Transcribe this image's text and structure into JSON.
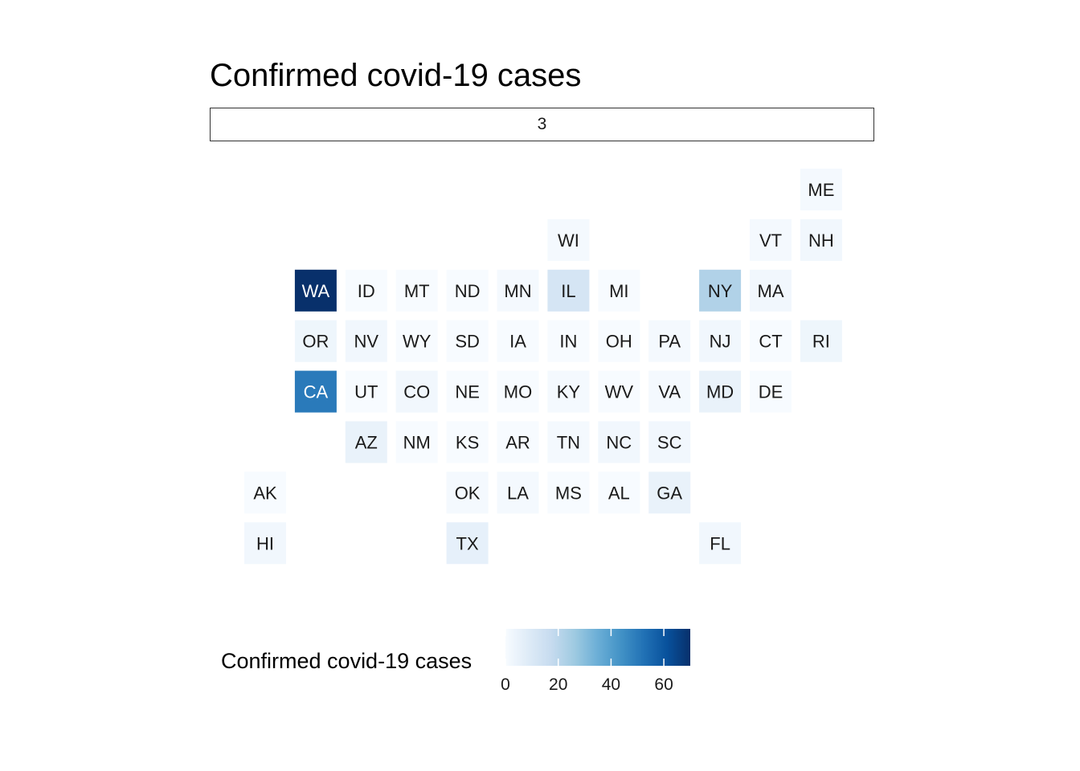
{
  "chart_data": {
    "type": "heatmap",
    "title": "Confirmed covid-19 cases",
    "facet_label": "3",
    "legend": {
      "title": "Confirmed covid-19 cases",
      "position": "bottom",
      "range": [
        0,
        70
      ],
      "ticks": [
        0,
        20,
        40,
        60
      ],
      "tick_labels": [
        "0",
        "20",
        "40",
        "60"
      ],
      "colors": [
        "#f7fbff",
        "#deebf7",
        "#c6dbef",
        "#9ecae1",
        "#6baed6",
        "#4292c6",
        "#2171b5",
        "#08519c",
        "#08306b"
      ]
    },
    "grid": false,
    "tiles": [
      {
        "state": "ME",
        "col": 12,
        "row": 1,
        "value": 1
      },
      {
        "state": "WI",
        "col": 7,
        "row": 2,
        "value": 1
      },
      {
        "state": "VT",
        "col": 11,
        "row": 2,
        "value": 1
      },
      {
        "state": "NH",
        "col": 12,
        "row": 2,
        "value": 2
      },
      {
        "state": "WA",
        "col": 2,
        "row": 3,
        "value": 70
      },
      {
        "state": "ID",
        "col": 3,
        "row": 3,
        "value": 0
      },
      {
        "state": "MT",
        "col": 4,
        "row": 3,
        "value": 0
      },
      {
        "state": "ND",
        "col": 5,
        "row": 3,
        "value": 0
      },
      {
        "state": "MN",
        "col": 6,
        "row": 3,
        "value": 1
      },
      {
        "state": "IL",
        "col": 7,
        "row": 3,
        "value": 12
      },
      {
        "state": "MI",
        "col": 8,
        "row": 3,
        "value": 0
      },
      {
        "state": "NY",
        "col": 10,
        "row": 3,
        "value": 22
      },
      {
        "state": "MA",
        "col": 11,
        "row": 3,
        "value": 2
      },
      {
        "state": "OR",
        "col": 2,
        "row": 4,
        "value": 3
      },
      {
        "state": "NV",
        "col": 3,
        "row": 4,
        "value": 2
      },
      {
        "state": "WY",
        "col": 4,
        "row": 4,
        "value": 0
      },
      {
        "state": "SD",
        "col": 5,
        "row": 4,
        "value": 0
      },
      {
        "state": "IA",
        "col": 6,
        "row": 4,
        "value": 0
      },
      {
        "state": "IN",
        "col": 7,
        "row": 4,
        "value": 0
      },
      {
        "state": "OH",
        "col": 8,
        "row": 4,
        "value": 0
      },
      {
        "state": "PA",
        "col": 9,
        "row": 4,
        "value": 1
      },
      {
        "state": "NJ",
        "col": 10,
        "row": 4,
        "value": 2
      },
      {
        "state": "CT",
        "col": 11,
        "row": 4,
        "value": 0
      },
      {
        "state": "RI",
        "col": 12,
        "row": 4,
        "value": 3
      },
      {
        "state": "CA",
        "col": 2,
        "row": 5,
        "value": 50
      },
      {
        "state": "UT",
        "col": 3,
        "row": 5,
        "value": 0
      },
      {
        "state": "CO",
        "col": 4,
        "row": 5,
        "value": 2
      },
      {
        "state": "NE",
        "col": 5,
        "row": 5,
        "value": 0
      },
      {
        "state": "MO",
        "col": 6,
        "row": 5,
        "value": 0
      },
      {
        "state": "KY",
        "col": 7,
        "row": 5,
        "value": 1
      },
      {
        "state": "WV",
        "col": 8,
        "row": 5,
        "value": 0
      },
      {
        "state": "VA",
        "col": 9,
        "row": 5,
        "value": 1
      },
      {
        "state": "MD",
        "col": 10,
        "row": 5,
        "value": 5
      },
      {
        "state": "DE",
        "col": 11,
        "row": 5,
        "value": 0
      },
      {
        "state": "AZ",
        "col": 3,
        "row": 6,
        "value": 5
      },
      {
        "state": "NM",
        "col": 4,
        "row": 6,
        "value": 0
      },
      {
        "state": "KS",
        "col": 5,
        "row": 6,
        "value": 0
      },
      {
        "state": "AR",
        "col": 6,
        "row": 6,
        "value": 0
      },
      {
        "state": "TN",
        "col": 7,
        "row": 6,
        "value": 1
      },
      {
        "state": "NC",
        "col": 8,
        "row": 6,
        "value": 2
      },
      {
        "state": "SC",
        "col": 9,
        "row": 6,
        "value": 2
      },
      {
        "state": "AK",
        "col": 1,
        "row": 7,
        "value": 0
      },
      {
        "state": "OK",
        "col": 5,
        "row": 7,
        "value": 1
      },
      {
        "state": "LA",
        "col": 6,
        "row": 7,
        "value": 1
      },
      {
        "state": "MS",
        "col": 7,
        "row": 7,
        "value": 0
      },
      {
        "state": "AL",
        "col": 8,
        "row": 7,
        "value": 0
      },
      {
        "state": "GA",
        "col": 9,
        "row": 7,
        "value": 5
      },
      {
        "state": "HI",
        "col": 1,
        "row": 8,
        "value": 2
      },
      {
        "state": "TX",
        "col": 5,
        "row": 8,
        "value": 6
      },
      {
        "state": "FL",
        "col": 10,
        "row": 8,
        "value": 2
      }
    ]
  }
}
